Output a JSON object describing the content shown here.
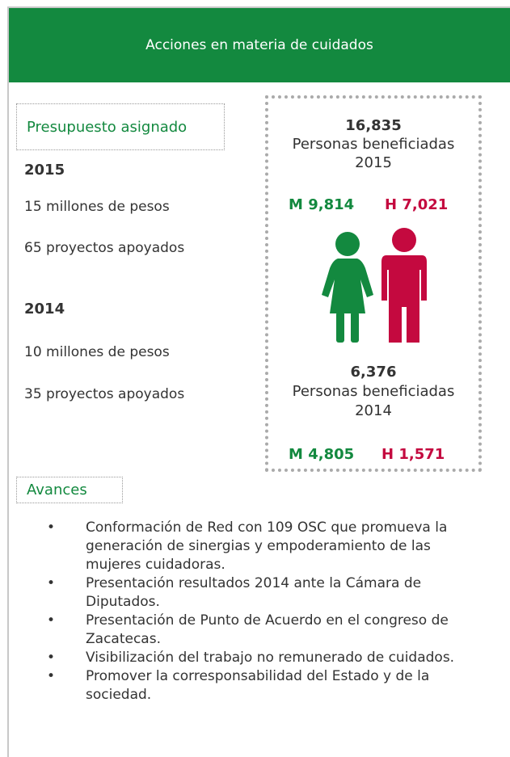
{
  "header": {
    "title": "Acciones en materia de cuidados"
  },
  "budget": {
    "title": "Presupuesto asignado",
    "years": [
      {
        "year": "2015",
        "amount": "15 millones de pesos",
        "projects": "65 proyectos apoyados"
      },
      {
        "year": "2014",
        "amount": "10 millones de pesos",
        "projects": "35 proyectos apoyados"
      }
    ]
  },
  "beneficiaries": [
    {
      "total": "16,835",
      "label": "Personas beneficiadas",
      "year": "2015",
      "m_label": "M",
      "m": "9,814",
      "h_label": "H",
      "h": "7,021"
    },
    {
      "total": "6,376",
      "label": "Personas beneficiadas",
      "year": "2014",
      "m_label": "M",
      "m": "4,805",
      "h_label": "H",
      "h": "1,571"
    }
  ],
  "progress": {
    "title": "Avances",
    "items": [
      "Conformación de Red con 109 OSC que promueva la generación de sinergias y empoderamiento de las mujeres cuidadoras.",
      "Presentación resultados 2014 ante la Cámara de Diputados.",
      "Presentación de Punto de Acuerdo en el congreso de Zacatecas.",
      "Visibilización del trabajo no remunerado de cuidados.",
      "Promover la corresponsabilidad del Estado y de la sociedad."
    ]
  }
}
